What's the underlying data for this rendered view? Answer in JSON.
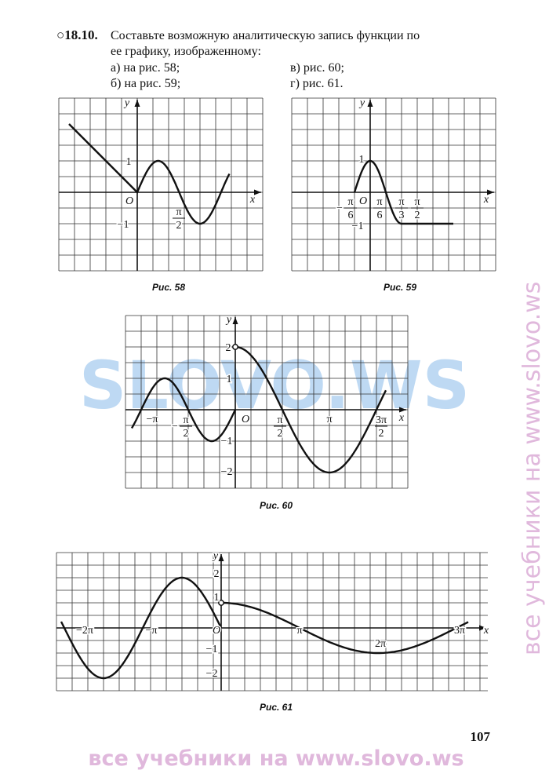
{
  "problem": {
    "number": "○18.10.",
    "lines": [
      "Составьте возможную аналитическую запись функции по",
      "ее графику, изображенному:"
    ],
    "items": [
      "а) на рис. 58;",
      "б) на рис. 59;",
      "в) рис. 60;",
      "г) рис. 61."
    ]
  },
  "figures": [
    {
      "caption": "Рис. 58",
      "labels": [
        "y",
        "x",
        "O",
        "1",
        "−1",
        {
          "num": "π",
          "den": "2"
        }
      ]
    },
    {
      "caption": "Рис. 59",
      "labels": [
        "y",
        "x",
        "O",
        "1",
        "−1",
        {
          "sign": "−",
          "num": "π",
          "den": "6"
        },
        {
          "num": "π",
          "den": "6"
        },
        {
          "num": "π",
          "den": "3"
        },
        {
          "num": "π",
          "den": "2"
        }
      ]
    },
    {
      "caption": "Рис. 60",
      "labels": [
        "y",
        "x",
        "O",
        "2",
        "1",
        "−1",
        "−2",
        "−π",
        {
          "sign": "−",
          "num": "π",
          "den": "2"
        },
        {
          "num": "π",
          "den": "2"
        },
        "π",
        {
          "num": "3π",
          "den": "2"
        }
      ]
    },
    {
      "caption": "Рис. 61",
      "labels": [
        "y",
        "x",
        "O",
        "2",
        "1",
        "−1",
        "−2",
        "−2π",
        "−π",
        "π",
        "2π",
        "3π"
      ]
    }
  ],
  "page_number": "107",
  "watermarks": {
    "center": "SLOVO.WS",
    "side": "все учебники на www.slovo.ws",
    "bottom": "все учебники на www.slovo.ws"
  }
}
